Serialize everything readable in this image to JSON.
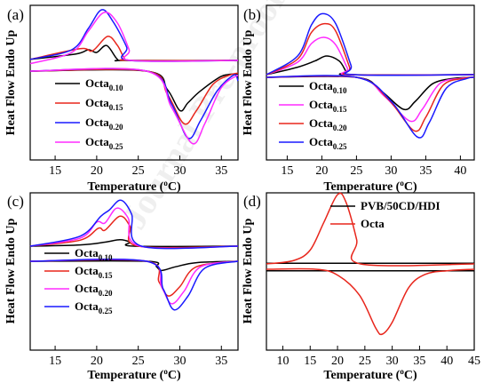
{
  "watermark": "Journal Pre-proof",
  "chart_data": [
    {
      "panel": "(a)",
      "type": "line",
      "xlabel": "Temperature (°C)",
      "ylabel": "Heat Flow Endo Up",
      "xlim": [
        12,
        37
      ],
      "xticks": [
        15,
        20,
        25,
        30,
        35
      ],
      "legend_position": "left",
      "series": [
        {
          "name": "Octa",
          "sub": "0.10",
          "color": "#000000",
          "upper": [
            [
              12,
              0.02
            ],
            [
              17.5,
              0.12
            ],
            [
              19,
              0.2
            ],
            [
              20,
              0.15
            ],
            [
              21.2,
              0.28
            ],
            [
              22.5,
              0.02
            ],
            [
              23.5,
              0
            ],
            [
              37,
              0
            ]
          ],
          "lower": [
            [
              12,
              0
            ],
            [
              26,
              0
            ],
            [
              28.5,
              -0.28
            ],
            [
              30,
              -0.6
            ],
            [
              31,
              -0.48
            ],
            [
              32.5,
              -0.3
            ],
            [
              35,
              -0.08
            ],
            [
              37,
              -0.04
            ]
          ]
        },
        {
          "name": "Octa",
          "sub": "0.15",
          "color": "#e8261c",
          "upper": [
            [
              12,
              0.02
            ],
            [
              18,
              0.22
            ],
            [
              19.5,
              0.18
            ],
            [
              21.3,
              0.45
            ],
            [
              22.5,
              0.28
            ],
            [
              23.3,
              0.05
            ],
            [
              24,
              0
            ],
            [
              37,
              0
            ]
          ],
          "lower": [
            [
              12,
              0
            ],
            [
              26,
              0
            ],
            [
              28.5,
              -0.35
            ],
            [
              30.5,
              -0.8
            ],
            [
              32,
              -0.6
            ],
            [
              34,
              -0.2
            ],
            [
              36,
              -0.06
            ],
            [
              37,
              -0.03
            ]
          ]
        },
        {
          "name": "Octa",
          "sub": "0.20",
          "color": "#1a1aff",
          "upper": [
            [
              12,
              0.02
            ],
            [
              17,
              0.2
            ],
            [
              19,
              0.6
            ],
            [
              20.6,
              0.95
            ],
            [
              22,
              0.72
            ],
            [
              23.6,
              0.25
            ],
            [
              24,
              0
            ],
            [
              37,
              0
            ]
          ],
          "lower": [
            [
              12,
              0
            ],
            [
              26,
              0
            ],
            [
              29,
              -0.5
            ],
            [
              31,
              -1.02
            ],
            [
              32.5,
              -0.75
            ],
            [
              34.5,
              -0.3
            ],
            [
              36.5,
              -0.06
            ],
            [
              37,
              -0.15
            ]
          ]
        },
        {
          "name": "Octa",
          "sub": "0.25",
          "color": "#ff2bff",
          "upper": [
            [
              12,
              -0.06
            ],
            [
              17,
              0.15
            ],
            [
              19,
              0.55
            ],
            [
              20.9,
              0.9
            ],
            [
              22.5,
              0.7
            ],
            [
              23.9,
              0.2
            ],
            [
              24.2,
              0
            ],
            [
              37,
              0
            ]
          ],
          "lower": [
            [
              12,
              0
            ],
            [
              26,
              0
            ],
            [
              29,
              -0.55
            ],
            [
              31.5,
              -1.1
            ],
            [
              33,
              -0.8
            ],
            [
              35,
              -0.25
            ],
            [
              37,
              -0.06
            ]
          ]
        }
      ]
    },
    {
      "panel": "(b)",
      "type": "line",
      "xlabel": "Temperature (°C)",
      "ylabel": "Heat Flow Endo Up",
      "xlim": [
        12,
        42
      ],
      "xticks": [
        15,
        20,
        25,
        30,
        35,
        40
      ],
      "legend_position": "left",
      "series": [
        {
          "name": "Octa",
          "sub": "0.10",
          "color": "#000000",
          "upper": [
            [
              12,
              0
            ],
            [
              16.5,
              0.12
            ],
            [
              19,
              0.22
            ],
            [
              20.7,
              0.3
            ],
            [
              22.5,
              0.22
            ],
            [
              23.5,
              0.05
            ],
            [
              24,
              0
            ],
            [
              42,
              0
            ]
          ],
          "lower": [
            [
              12,
              0
            ],
            [
              25,
              0
            ],
            [
              28.5,
              -0.25
            ],
            [
              31.8,
              -0.6
            ],
            [
              33.5,
              -0.45
            ],
            [
              36,
              -0.12
            ],
            [
              39,
              -0.02
            ],
            [
              42,
              0
            ]
          ]
        },
        {
          "name": "Octa",
          "sub": "0.15",
          "color": "#ff2bff",
          "upper": [
            [
              12,
              0
            ],
            [
              16.5,
              0.2
            ],
            [
              18.5,
              0.5
            ],
            [
              20.3,
              0.6
            ],
            [
              22,
              0.48
            ],
            [
              23.7,
              0.1
            ],
            [
              24.2,
              0
            ],
            [
              42,
              0
            ]
          ],
          "lower": [
            [
              12,
              0
            ],
            [
              25,
              0
            ],
            [
              29,
              -0.35
            ],
            [
              32.7,
              -0.82
            ],
            [
              34.5,
              -0.6
            ],
            [
              37,
              -0.12
            ],
            [
              40,
              -0.02
            ],
            [
              42,
              0
            ]
          ]
        },
        {
          "name": "Octa",
          "sub": "0.20",
          "color": "#e8261c",
          "upper": [
            [
              12,
              0
            ],
            [
              16.5,
              0.25
            ],
            [
              18.5,
              0.68
            ],
            [
              20.4,
              0.82
            ],
            [
              22,
              0.7
            ],
            [
              24,
              0.12
            ],
            [
              24.4,
              0
            ],
            [
              42,
              0
            ]
          ],
          "lower": [
            [
              12,
              0
            ],
            [
              25,
              0
            ],
            [
              29.5,
              -0.4
            ],
            [
              33.3,
              -1
            ],
            [
              35,
              -0.75
            ],
            [
              37.5,
              -0.15
            ],
            [
              40.5,
              -0.02
            ],
            [
              42,
              0
            ]
          ]
        },
        {
          "name": "Octa",
          "sub": "0.25",
          "color": "#1a1aff",
          "upper": [
            [
              12,
              0
            ],
            [
              16.5,
              0.3
            ],
            [
              18.5,
              0.8
            ],
            [
              20.1,
              0.98
            ],
            [
              22,
              0.82
            ],
            [
              24.2,
              0.15
            ],
            [
              24.6,
              0
            ],
            [
              42,
              0
            ]
          ],
          "lower": [
            [
              12,
              0
            ],
            [
              25,
              0
            ],
            [
              30,
              -0.45
            ],
            [
              33.8,
              -1.12
            ],
            [
              35.5,
              -0.85
            ],
            [
              38,
              -0.2
            ],
            [
              41,
              -0.02
            ],
            [
              42,
              0
            ]
          ]
        }
      ]
    },
    {
      "panel": "(c)",
      "type": "line",
      "xlabel": "Temperature (°C)",
      "ylabel": "Heat Flow Endo Up",
      "xlim": [
        12,
        37
      ],
      "xticks": [
        15,
        20,
        25,
        30,
        35
      ],
      "legend_position": "left",
      "series": [
        {
          "name": "Octa",
          "sub": "0.10",
          "color": "#000000",
          "upper": [
            [
              12,
              0
            ],
            [
              18,
              0.03
            ],
            [
              21,
              0.1
            ],
            [
              22.8,
              0.16
            ],
            [
              24,
              0.1
            ],
            [
              24.5,
              0
            ],
            [
              37,
              0
            ]
          ],
          "lower": [
            [
              12,
              0
            ],
            [
              26,
              0
            ],
            [
              27.2,
              -0.12
            ],
            [
              27.8,
              -0.2
            ],
            [
              29.5,
              -0.12
            ],
            [
              32,
              -0.03
            ],
            [
              37,
              0
            ]
          ]
        },
        {
          "name": "Octa",
          "sub": "0.15",
          "color": "#e8261c",
          "upper": [
            [
              12,
              0
            ],
            [
              18,
              0.15
            ],
            [
              20.2,
              0.45
            ],
            [
              21,
              0.4
            ],
            [
              22.8,
              0.75
            ],
            [
              24,
              0.5
            ],
            [
              25,
              0
            ],
            [
              37,
              0
            ]
          ],
          "lower": [
            [
              12,
              0
            ],
            [
              26,
              0
            ],
            [
              27.5,
              -0.45
            ],
            [
              28.6,
              -0.75
            ],
            [
              30,
              -0.55
            ],
            [
              32,
              -0.12
            ],
            [
              37,
              0
            ]
          ]
        },
        {
          "name": "Octa",
          "sub": "0.20",
          "color": "#ff2bff",
          "upper": [
            [
              12,
              0
            ],
            [
              18,
              0.2
            ],
            [
              20,
              0.6
            ],
            [
              21,
              0.58
            ],
            [
              22.4,
              0.95
            ],
            [
              23.8,
              0.7
            ],
            [
              25.2,
              0
            ],
            [
              37,
              0
            ]
          ],
          "lower": [
            [
              12,
              0
            ],
            [
              26,
              0
            ],
            [
              27.8,
              -0.55
            ],
            [
              29,
              -0.92
            ],
            [
              30.5,
              -0.65
            ],
            [
              32.5,
              -0.12
            ],
            [
              37,
              0
            ]
          ]
        },
        {
          "name": "Octa",
          "sub": "0.25",
          "color": "#1a1aff",
          "upper": [
            [
              12,
              0
            ],
            [
              18,
              0.25
            ],
            [
              20.5,
              0.75
            ],
            [
              21.5,
              0.9
            ],
            [
              22.9,
              1.15
            ],
            [
              24.2,
              0.8
            ],
            [
              25.4,
              0
            ],
            [
              37,
              0
            ]
          ],
          "lower": [
            [
              12,
              0
            ],
            [
              26,
              0
            ],
            [
              28,
              -0.6
            ],
            [
              29.3,
              -1.05
            ],
            [
              31,
              -0.75
            ],
            [
              33,
              -0.15
            ],
            [
              37,
              0
            ]
          ]
        }
      ]
    },
    {
      "panel": "(d)",
      "type": "line",
      "xlabel": "Temperature (°C)",
      "ylabel": "Heat Flow Endo Up",
      "xlim": [
        7,
        45
      ],
      "xticks": [
        10,
        15,
        20,
        25,
        30,
        35,
        40,
        45
      ],
      "legend_position": "top-right",
      "series": [
        {
          "name": "PVB/50CD/HDI",
          "color": "#000000",
          "upper": [
            [
              7,
              0.01
            ],
            [
              45,
              0.01
            ]
          ],
          "lower": [
            [
              7,
              -0.02
            ],
            [
              45,
              -0.02
            ]
          ]
        },
        {
          "name": "Octa",
          "color": "#e8261c",
          "upper": [
            [
              7,
              0
            ],
            [
              12,
              0.05
            ],
            [
              15,
              0.2
            ],
            [
              17.5,
              0.6
            ],
            [
              20,
              1
            ],
            [
              21.5,
              0.9
            ],
            [
              23.5,
              0.35
            ],
            [
              24.2,
              0
            ],
            [
              45,
              0
            ]
          ],
          "lower": [
            [
              7,
              0
            ],
            [
              16,
              0
            ],
            [
              20,
              -0.08
            ],
            [
              24,
              -0.35
            ],
            [
              27,
              -0.8
            ],
            [
              28.2,
              -0.88
            ],
            [
              30,
              -0.72
            ],
            [
              33,
              -0.25
            ],
            [
              36,
              -0.07
            ],
            [
              40,
              -0.02
            ],
            [
              45,
              0
            ]
          ]
        }
      ]
    }
  ]
}
